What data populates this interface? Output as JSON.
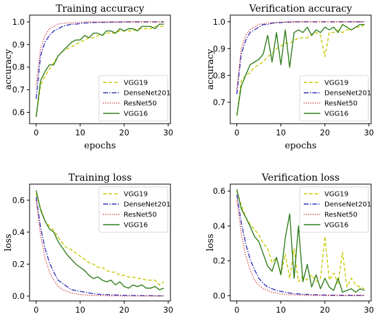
{
  "chart_data": [
    {
      "type": "line",
      "title": "Training accuracy",
      "xlabel": "epochs",
      "ylabel": "accuracy",
      "xlim": [
        -1.5,
        30.5
      ],
      "ylim": [
        0.55,
        1.03
      ],
      "xticks": [
        0,
        10,
        20,
        30
      ],
      "yticks": [
        0.6,
        0.7,
        0.8,
        0.9,
        1.0
      ],
      "ytick_labels": [
        "0.6",
        "0.7",
        "0.8",
        "0.9",
        "1.0"
      ],
      "legend": "bottom-right",
      "grid": false,
      "series": [
        {
          "name": "VGG19",
          "color": "#c8c800",
          "dash": "5,3",
          "values": [
            0.58,
            0.72,
            0.76,
            0.79,
            0.82,
            0.85,
            0.87,
            0.88,
            0.89,
            0.9,
            0.91,
            0.92,
            0.93,
            0.93,
            0.94,
            0.94,
            0.95,
            0.95,
            0.95,
            0.96,
            0.96,
            0.96,
            0.96,
            0.97,
            0.97,
            0.97,
            0.97,
            0.98,
            0.98,
            0.98
          ]
        },
        {
          "name": "DenseNet201",
          "color": "#3333bb",
          "dash": "7,2,1.5,2",
          "values": [
            0.66,
            0.85,
            0.91,
            0.94,
            0.96,
            0.97,
            0.98,
            0.985,
            0.99,
            0.99,
            0.993,
            0.995,
            0.996,
            0.997,
            0.998,
            0.998,
            0.998,
            0.999,
            0.999,
            0.999,
            1.0,
            1.0,
            1.0,
            1.0,
            1.0,
            1.0,
            1.0,
            1.0,
            1.0,
            1.0
          ]
        },
        {
          "name": "ResNet50",
          "color": "#cc3333",
          "dash": "1.2,2",
          "values": [
            0.72,
            0.88,
            0.94,
            0.97,
            0.98,
            0.99,
            0.993,
            0.995,
            0.996,
            0.997,
            0.998,
            0.999,
            1.0,
            1.0,
            1.0,
            1.0,
            1.0,
            1.0,
            1.0,
            1.0,
            1.0,
            1.0,
            1.0,
            1.0,
            1.0,
            1.0,
            1.0,
            1.0,
            1.0,
            1.0
          ]
        },
        {
          "name": "VGG16",
          "color": "#2e7d1a",
          "dash": "",
          "values": [
            0.58,
            0.74,
            0.78,
            0.81,
            0.81,
            0.85,
            0.87,
            0.89,
            0.91,
            0.92,
            0.92,
            0.94,
            0.93,
            0.95,
            0.95,
            0.94,
            0.96,
            0.96,
            0.95,
            0.97,
            0.96,
            0.97,
            0.97,
            0.96,
            0.98,
            0.98,
            0.98,
            0.97,
            0.99,
            0.99
          ]
        }
      ]
    },
    {
      "type": "line",
      "title": "Verification accuracy",
      "xlabel": "epochs",
      "ylabel": "accuracy",
      "xlim": [
        -1.5,
        30.5
      ],
      "ylim": [
        0.62,
        1.025
      ],
      "xticks": [
        0,
        10,
        20,
        30
      ],
      "yticks": [
        0.7,
        0.8,
        0.9,
        1.0
      ],
      "ytick_labels": [
        "0.7",
        "0.8",
        "0.9",
        "1.0"
      ],
      "legend": "bottom-right",
      "grid": false,
      "series": [
        {
          "name": "VGG19",
          "color": "#c8c800",
          "dash": "5,3",
          "values": [
            0.65,
            0.78,
            0.8,
            0.81,
            0.83,
            0.84,
            0.85,
            0.87,
            0.88,
            0.9,
            0.91,
            0.92,
            0.92,
            0.93,
            0.94,
            0.94,
            0.94,
            0.95,
            0.96,
            0.95,
            0.87,
            0.96,
            0.96,
            0.97,
            0.96,
            0.97,
            0.97,
            0.98,
            0.98,
            0.99
          ]
        },
        {
          "name": "DenseNet201",
          "color": "#3333bb",
          "dash": "7,2,1.5,2",
          "values": [
            0.73,
            0.88,
            0.93,
            0.96,
            0.97,
            0.98,
            0.99,
            0.99,
            0.995,
            0.996,
            0.997,
            0.998,
            0.999,
            1.0,
            1.0,
            1.0,
            1.0,
            1.0,
            1.0,
            1.0,
            1.0,
            1.0,
            1.0,
            1.0,
            1.0,
            1.0,
            1.0,
            1.0,
            1.0,
            1.0
          ]
        },
        {
          "name": "ResNet50",
          "color": "#cc3333",
          "dash": "1.2,2",
          "values": [
            0.75,
            0.9,
            0.95,
            0.97,
            0.98,
            0.99,
            0.993,
            0.995,
            0.997,
            0.998,
            0.999,
            1.0,
            1.0,
            1.0,
            1.0,
            1.0,
            1.0,
            1.0,
            1.0,
            1.0,
            1.0,
            1.0,
            1.0,
            1.0,
            1.0,
            1.0,
            1.0,
            1.0,
            1.0,
            1.0
          ]
        },
        {
          "name": "VGG16",
          "color": "#2e7d1a",
          "dash": "",
          "values": [
            0.65,
            0.76,
            0.8,
            0.84,
            0.85,
            0.86,
            0.88,
            0.95,
            0.85,
            0.96,
            0.84,
            0.97,
            0.83,
            0.96,
            0.97,
            0.96,
            0.98,
            0.95,
            0.97,
            0.96,
            0.98,
            0.97,
            0.98,
            0.96,
            0.99,
            0.98,
            0.97,
            0.98,
            0.99,
            0.99
          ]
        }
      ]
    },
    {
      "type": "line",
      "title": "Training loss",
      "xlabel": "",
      "ylabel": "loss",
      "xlim": [
        -1.5,
        30.5
      ],
      "ylim": [
        -0.03,
        0.7
      ],
      "xticks": [
        0,
        10,
        20,
        30
      ],
      "yticks": [
        0.0,
        0.2,
        0.4,
        0.6
      ],
      "ytick_labels": [
        "0.0",
        "0.2",
        "0.4",
        "0.6"
      ],
      "legend": "top-right",
      "grid": false,
      "series": [
        {
          "name": "VGG19",
          "color": "#c8c800",
          "dash": "5,3",
          "values": [
            0.64,
            0.55,
            0.47,
            0.44,
            0.41,
            0.37,
            0.33,
            0.3,
            0.29,
            0.27,
            0.25,
            0.23,
            0.21,
            0.2,
            0.18,
            0.18,
            0.16,
            0.15,
            0.15,
            0.13,
            0.13,
            0.12,
            0.12,
            0.11,
            0.11,
            0.1,
            0.1,
            0.1,
            0.07,
            0.09
          ]
        },
        {
          "name": "DenseNet201",
          "color": "#3333bb",
          "dash": "7,2,1.5,2",
          "values": [
            0.62,
            0.43,
            0.3,
            0.21,
            0.15,
            0.1,
            0.08,
            0.06,
            0.04,
            0.035,
            0.03,
            0.025,
            0.02,
            0.015,
            0.012,
            0.01,
            0.01,
            0.008,
            0.007,
            0.006,
            0.005,
            0.005,
            0.004,
            0.004,
            0.003,
            0.003,
            0.003,
            0.002,
            0.002,
            0.002
          ]
        },
        {
          "name": "ResNet50",
          "color": "#cc3333",
          "dash": "1.2,2",
          "values": [
            0.6,
            0.38,
            0.24,
            0.15,
            0.1,
            0.06,
            0.04,
            0.03,
            0.02,
            0.015,
            0.01,
            0.008,
            0.006,
            0.005,
            0.004,
            0.003,
            0.003,
            0.002,
            0.002,
            0.002,
            0.001,
            0.001,
            0.001,
            0.001,
            0.001,
            0.001,
            0.001,
            0.001,
            0.001,
            0.001
          ]
        },
        {
          "name": "VGG16",
          "color": "#2e7d1a",
          "dash": "",
          "values": [
            0.66,
            0.54,
            0.47,
            0.42,
            0.4,
            0.34,
            0.3,
            0.26,
            0.23,
            0.2,
            0.18,
            0.16,
            0.13,
            0.11,
            0.12,
            0.1,
            0.09,
            0.1,
            0.07,
            0.09,
            0.06,
            0.05,
            0.07,
            0.06,
            0.07,
            0.05,
            0.05,
            0.06,
            0.04,
            0.05
          ]
        }
      ]
    },
    {
      "type": "line",
      "title": "Verification loss",
      "xlabel": "",
      "ylabel": "loss",
      "xlim": [
        -1.5,
        30.5
      ],
      "ylim": [
        -0.03,
        0.64
      ],
      "xticks": [
        0,
        10,
        20,
        30
      ],
      "yticks": [
        0.0,
        0.2,
        0.4,
        0.6
      ],
      "ytick_labels": [
        "0.0",
        "0.2",
        "0.4",
        "0.6"
      ],
      "legend": "top-right",
      "grid": false,
      "series": [
        {
          "name": "VGG19",
          "color": "#c8c800",
          "dash": "5,3",
          "values": [
            0.6,
            0.52,
            0.45,
            0.41,
            0.38,
            0.35,
            0.3,
            0.27,
            0.19,
            0.22,
            0.12,
            0.24,
            0.1,
            0.27,
            0.08,
            0.11,
            0.09,
            0.12,
            0.08,
            0.1,
            0.34,
            0.09,
            0.13,
            0.07,
            0.25,
            0.05,
            0.1,
            0.06,
            0.05,
            0.04
          ]
        },
        {
          "name": "DenseNet201",
          "color": "#3333bb",
          "dash": "7,2,1.5,2",
          "values": [
            0.58,
            0.42,
            0.3,
            0.21,
            0.15,
            0.1,
            0.07,
            0.05,
            0.04,
            0.03,
            0.025,
            0.02,
            0.015,
            0.012,
            0.01,
            0.008,
            0.007,
            0.006,
            0.005,
            0.004,
            0.004,
            0.003,
            0.003,
            0.003,
            0.002,
            0.002,
            0.002,
            0.002,
            0.002,
            0.002
          ]
        },
        {
          "name": "ResNet50",
          "color": "#cc3333",
          "dash": "1.2,2",
          "values": [
            0.55,
            0.36,
            0.23,
            0.15,
            0.09,
            0.06,
            0.04,
            0.03,
            0.02,
            0.015,
            0.01,
            0.008,
            0.006,
            0.005,
            0.004,
            0.003,
            0.003,
            0.002,
            0.002,
            0.002,
            0.001,
            0.001,
            0.001,
            0.001,
            0.001,
            0.001,
            0.001,
            0.001,
            0.001,
            0.001
          ]
        },
        {
          "name": "VGG16",
          "color": "#2e7d1a",
          "dash": "",
          "values": [
            0.61,
            0.5,
            0.45,
            0.4,
            0.34,
            0.31,
            0.24,
            0.17,
            0.14,
            0.22,
            0.12,
            0.33,
            0.47,
            0.1,
            0.4,
            0.08,
            0.18,
            0.05,
            0.12,
            0.04,
            0.1,
            0.05,
            0.03,
            0.1,
            0.02,
            0.03,
            0.04,
            0.02,
            0.04,
            0.03
          ]
        }
      ]
    }
  ]
}
